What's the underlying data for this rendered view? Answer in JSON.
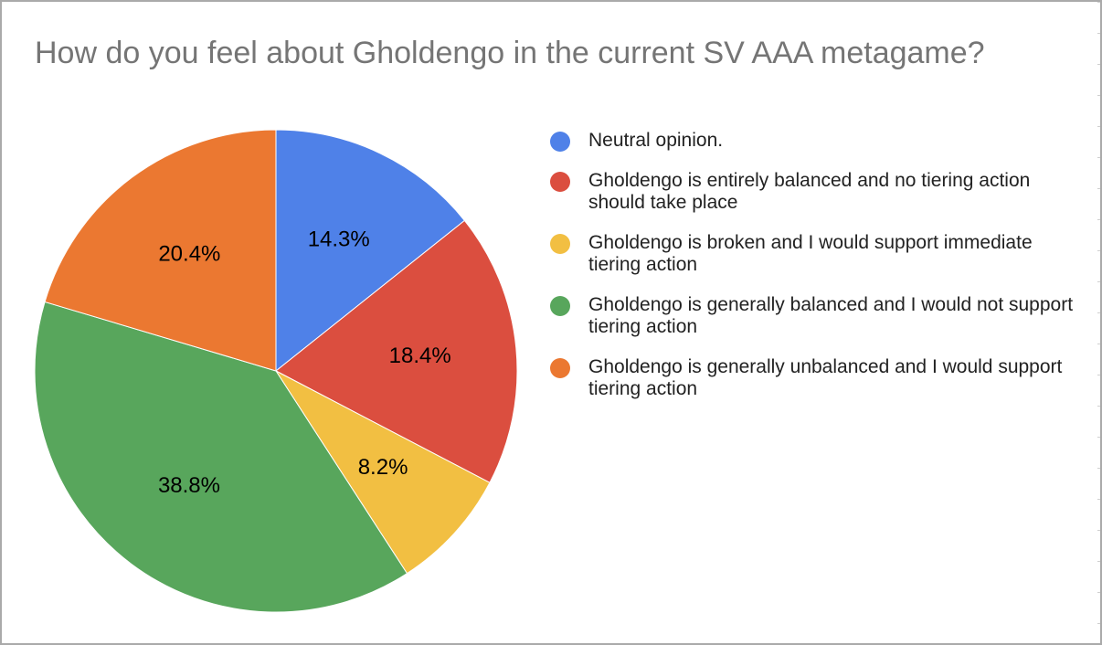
{
  "chart_data": {
    "type": "pie",
    "title": "How do you feel about Gholdengo in the current SV AAA metagame?",
    "legend_position": "right",
    "slices": [
      {
        "label": "Neutral opinion.",
        "value": 14.3,
        "value_label": "14.3%",
        "color": "#4f81e8"
      },
      {
        "label": "Gholdengo is entirely balanced and no tiering action should take place",
        "value": 18.4,
        "value_label": "18.4%",
        "color": "#db4e3f"
      },
      {
        "label": "Gholdengo is broken and I would support immediate tiering action",
        "value": 8.2,
        "value_label": "8.2%",
        "color": "#f2bf42"
      },
      {
        "label": "Gholdengo is generally balanced and I would not support tiering action",
        "value": 38.8,
        "value_label": "38.8%",
        "color": "#58a65c"
      },
      {
        "label": "Gholdengo is generally unbalanced and I would support tiering action",
        "value": 20.4,
        "value_label": "20.4%",
        "color": "#eb7831"
      }
    ]
  }
}
